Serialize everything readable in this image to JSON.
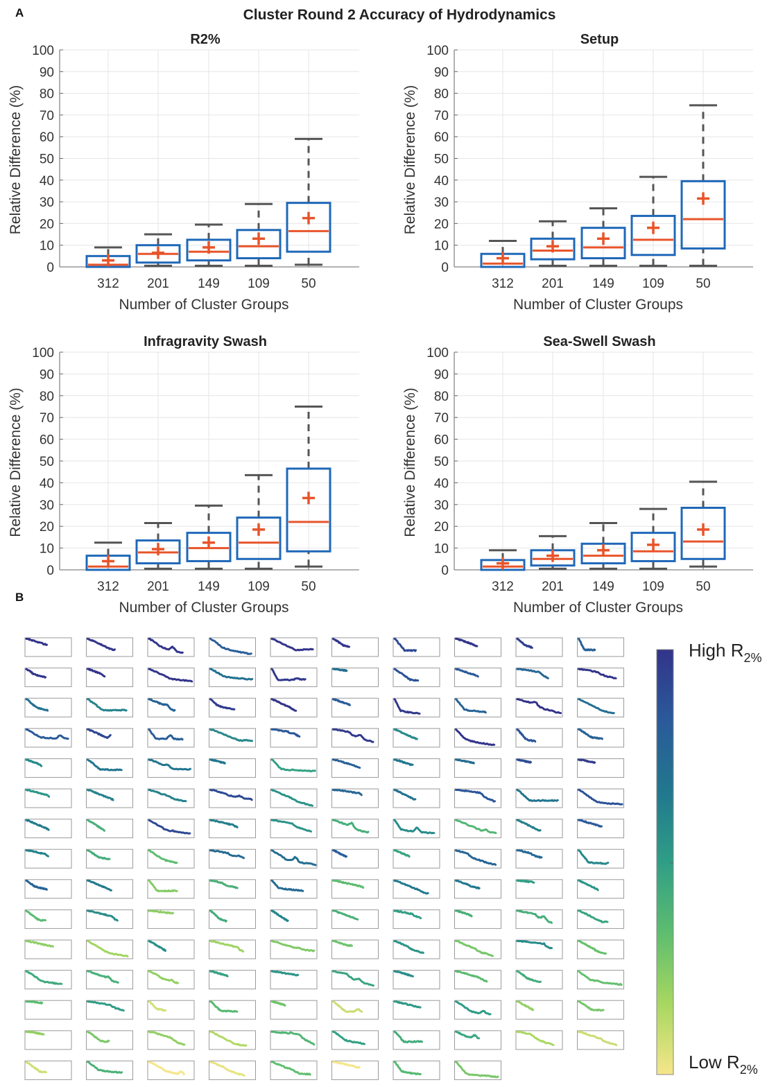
{
  "panel_a_label": "A",
  "panel_b_label": "B",
  "figure_title": "Cluster Round 2 Accuracy of Hydrodynamics",
  "colors": {
    "box": "#1f68b8",
    "median": "#e8542a",
    "mean_marker": "#e8542a",
    "whisker": "#555555",
    "grid": "#e6e6e6",
    "axis": "#666666",
    "profile_frame": "#9a9a9a"
  },
  "chart_data": [
    {
      "type": "box",
      "title": "R2%",
      "xlabel": "Number of Cluster Groups",
      "ylabel": "Relative Difference (%)",
      "ylim": [
        0,
        100
      ],
      "yticks": [
        0,
        10,
        20,
        30,
        40,
        50,
        60,
        70,
        80,
        90,
        100
      ],
      "grid": true,
      "categories": [
        "312",
        "201",
        "149",
        "109",
        "50"
      ],
      "boxes": [
        {
          "min": 0,
          "q1": 0,
          "median": 1,
          "q3": 5,
          "max": 9,
          "mean": 3
        },
        {
          "min": 0.5,
          "q1": 2,
          "median": 6,
          "q3": 10,
          "max": 15,
          "mean": 6.5
        },
        {
          "min": 0.5,
          "q1": 3,
          "median": 7,
          "q3": 12.5,
          "max": 19.5,
          "mean": 9
        },
        {
          "min": 0.5,
          "q1": 4,
          "median": 9.5,
          "q3": 17,
          "max": 29,
          "mean": 13
        },
        {
          "min": 1,
          "q1": 7,
          "median": 16.5,
          "q3": 29.5,
          "max": 59,
          "mean": 22.5
        }
      ]
    },
    {
      "type": "box",
      "title": "Setup",
      "xlabel": "Number of Cluster Groups",
      "ylabel": "Relative Difference (%)",
      "ylim": [
        0,
        100
      ],
      "yticks": [
        0,
        10,
        20,
        30,
        40,
        50,
        60,
        70,
        80,
        90,
        100
      ],
      "grid": true,
      "categories": [
        "312",
        "201",
        "149",
        "109",
        "50"
      ],
      "boxes": [
        {
          "min": 0,
          "q1": 0,
          "median": 1.5,
          "q3": 6,
          "max": 12,
          "mean": 4
        },
        {
          "min": 0.5,
          "q1": 3.5,
          "median": 7.5,
          "q3": 13,
          "max": 21,
          "mean": 9.5
        },
        {
          "min": 0.5,
          "q1": 4,
          "median": 9,
          "q3": 18,
          "max": 27,
          "mean": 13
        },
        {
          "min": 0.5,
          "q1": 5.5,
          "median": 12.5,
          "q3": 23.5,
          "max": 41.5,
          "mean": 18
        },
        {
          "min": 0.5,
          "q1": 8.5,
          "median": 22,
          "q3": 39.5,
          "max": 74.5,
          "mean": 31.5
        }
      ]
    },
    {
      "type": "box",
      "title": "Infragravity Swash",
      "xlabel": "Number of Cluster Groups",
      "ylabel": "Relative Difference (%)",
      "ylim": [
        0,
        100
      ],
      "yticks": [
        0,
        10,
        20,
        30,
        40,
        50,
        60,
        70,
        80,
        90,
        100
      ],
      "grid": true,
      "categories": [
        "312",
        "201",
        "149",
        "109",
        "50"
      ],
      "boxes": [
        {
          "min": 0,
          "q1": 0,
          "median": 1.5,
          "q3": 6.5,
          "max": 12.5,
          "mean": 4
        },
        {
          "min": 0.5,
          "q1": 3,
          "median": 8,
          "q3": 13.5,
          "max": 21.5,
          "mean": 9.5
        },
        {
          "min": 0.5,
          "q1": 4,
          "median": 10,
          "q3": 17,
          "max": 29.5,
          "mean": 12.5
        },
        {
          "min": 0.5,
          "q1": 5,
          "median": 12.5,
          "q3": 24,
          "max": 43.5,
          "mean": 18.5
        },
        {
          "min": 1.5,
          "q1": 8.5,
          "median": 22,
          "q3": 46.5,
          "max": 75,
          "mean": 33
        }
      ]
    },
    {
      "type": "box",
      "title": "Sea-Swell Swash",
      "xlabel": "Number of Cluster Groups",
      "ylabel": "Relative Difference (%)",
      "ylim": [
        0,
        100
      ],
      "yticks": [
        0,
        10,
        20,
        30,
        40,
        50,
        60,
        70,
        80,
        90,
        100
      ],
      "grid": true,
      "categories": [
        "312",
        "201",
        "149",
        "109",
        "50"
      ],
      "boxes": [
        {
          "min": 0,
          "q1": 0,
          "median": 1.5,
          "q3": 4.5,
          "max": 9,
          "mean": 3
        },
        {
          "min": 0.5,
          "q1": 2,
          "median": 5,
          "q3": 9,
          "max": 15.5,
          "mean": 6.5
        },
        {
          "min": 0.5,
          "q1": 3,
          "median": 6.5,
          "q3": 12,
          "max": 21.5,
          "mean": 9
        },
        {
          "min": 0.5,
          "q1": 4,
          "median": 8.5,
          "q3": 17,
          "max": 28,
          "mean": 11.5
        },
        {
          "min": 1.5,
          "q1": 5,
          "median": 13,
          "q3": 28.5,
          "max": 40.5,
          "mean": 18.5
        }
      ]
    }
  ],
  "profiles": {
    "columns": 10,
    "rows": 15,
    "count": 148,
    "colormap": [
      "#f5e68a",
      "#a7d760",
      "#5ebd6f",
      "#2f9e86",
      "#21778e",
      "#2a5a9a",
      "#32348a"
    ],
    "colorbar_high": {
      "text": "High R",
      "subscript": "2%"
    },
    "colorbar_low": {
      "text": "Low R",
      "subscript": "2%"
    }
  }
}
